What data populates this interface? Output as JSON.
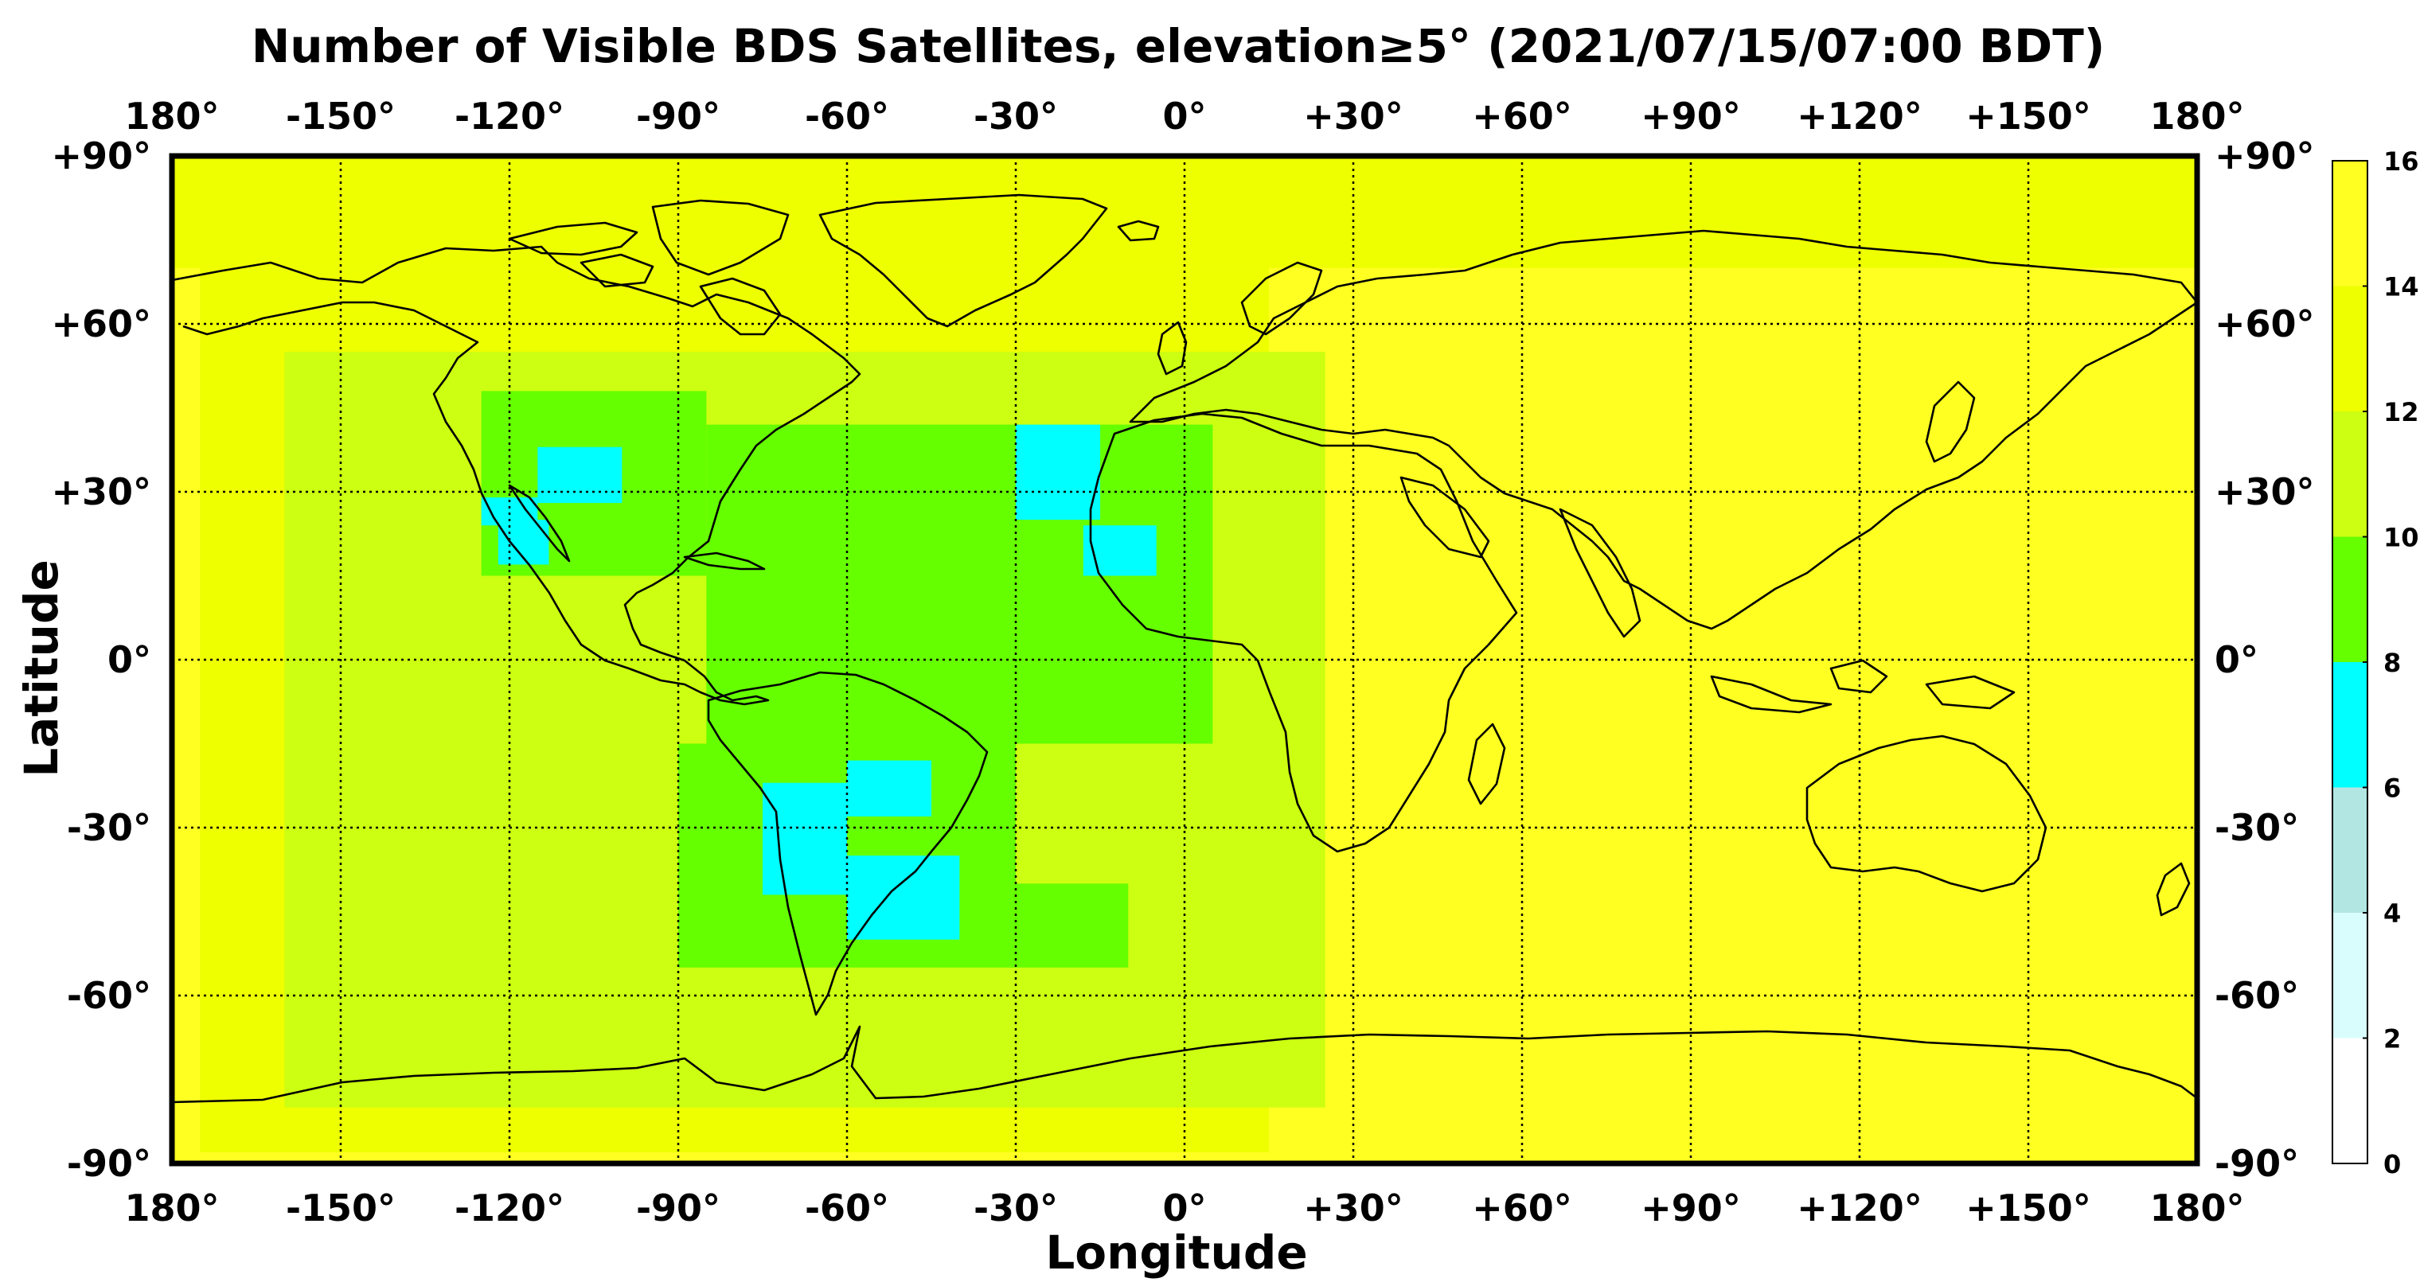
{
  "title": "Number of Visible BDS Satellites, elevation≥5° (2021/07/15/07:00 BDT)",
  "x_axis_label": "Longitude",
  "y_axis_label": "Latitude",
  "lon_ticks": [
    "180°",
    "-150°",
    "-120°",
    "-90°",
    "-60°",
    "-30°",
    "0°",
    "+30°",
    "+60°",
    "+90°",
    "+120°",
    "+150°",
    "180°"
  ],
  "lat_ticks": [
    "+90°",
    "+60°",
    "+30°",
    "0°",
    "-30°",
    "-60°",
    "-90°"
  ],
  "colorbar": {
    "ticks": [
      "16",
      "14",
      "12",
      "10",
      "8",
      "6",
      "4",
      "2",
      "0"
    ],
    "bands": [
      {
        "min": 0,
        "max": 2,
        "color": "#ffffff"
      },
      {
        "min": 2,
        "max": 4,
        "color": "#d9fdfd"
      },
      {
        "min": 4,
        "max": 6,
        "color": "#b2e6e2"
      },
      {
        "min": 6,
        "max": 8,
        "color": "#00ffff"
      },
      {
        "min": 8,
        "max": 10,
        "color": "#66ff00"
      },
      {
        "min": 10,
        "max": 12,
        "color": "#ccff11"
      },
      {
        "min": 12,
        "max": 14,
        "color": "#eeff00"
      },
      {
        "min": 14,
        "max": 16,
        "color": "#ffff22"
      }
    ]
  },
  "chart_data": {
    "type": "heatmap",
    "x_range": [
      -180,
      180
    ],
    "y_range": [
      -90,
      90
    ],
    "grid": true,
    "value_range": [
      0,
      16
    ],
    "background_value": 15,
    "regions": [
      {
        "lon": [
          -180,
          180
        ],
        "lat": [
          70,
          90
        ],
        "value": 13
      },
      {
        "lon": [
          -175,
          15
        ],
        "lat": [
          -88,
          70
        ],
        "value": 13
      },
      {
        "lon": [
          -160,
          25
        ],
        "lat": [
          -80,
          55
        ],
        "value": 11
      },
      {
        "lon": [
          -125,
          -85
        ],
        "lat": [
          15,
          48
        ],
        "value": 9
      },
      {
        "lon": [
          -85,
          5
        ],
        "lat": [
          -15,
          42
        ],
        "value": 9
      },
      {
        "lon": [
          -90,
          -30
        ],
        "lat": [
          -55,
          -15
        ],
        "value": 9
      },
      {
        "lon": [
          -30,
          -10
        ],
        "lat": [
          -55,
          -40
        ],
        "value": 9
      },
      {
        "lon": [
          -115,
          -100
        ],
        "lat": [
          28,
          38
        ],
        "value": 7
      },
      {
        "lon": [
          -125,
          -115
        ],
        "lat": [
          24,
          29
        ],
        "value": 7
      },
      {
        "lon": [
          -122,
          -113
        ],
        "lat": [
          17,
          25
        ],
        "value": 7
      },
      {
        "lon": [
          -30,
          -15
        ],
        "lat": [
          25,
          42
        ],
        "value": 7
      },
      {
        "lon": [
          -18,
          -5
        ],
        "lat": [
          15,
          24
        ],
        "value": 7
      },
      {
        "lon": [
          -75,
          -60
        ],
        "lat": [
          -42,
          -22
        ],
        "value": 7
      },
      {
        "lon": [
          -60,
          -40
        ],
        "lat": [
          -50,
          -35
        ],
        "value": 7
      },
      {
        "lon": [
          -60,
          -45
        ],
        "lat": [
          -28,
          -18
        ],
        "value": 7
      }
    ]
  }
}
